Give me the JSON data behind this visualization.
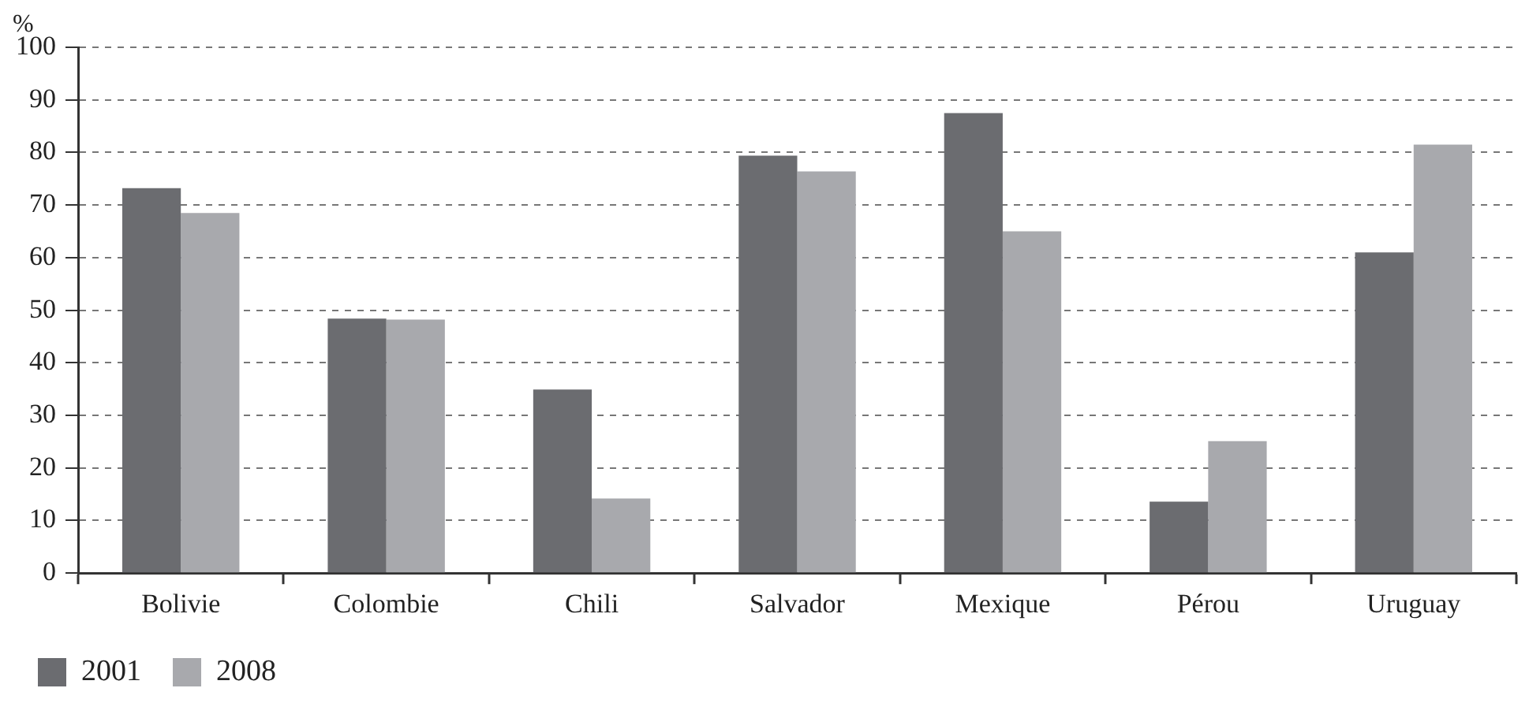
{
  "chart_data": {
    "type": "bar",
    "ylabel": "%",
    "categories": [
      "Bolivie",
      "Colombie",
      "Chili",
      "Salvador",
      "Mexique",
      "Pérou",
      "Uruguay"
    ],
    "series": [
      {
        "name": "2001",
        "color": "#6b6c70",
        "values": [
          73.2,
          48.4,
          34.9,
          79.4,
          87.5,
          13.6,
          61.0
        ]
      },
      {
        "name": "2008",
        "color": "#a8a9ad",
        "values": [
          68.5,
          48.2,
          14.2,
          76.4,
          65.0,
          25.1,
          81.5
        ]
      }
    ],
    "ylim": [
      0,
      100
    ],
    "yticks": [
      0,
      10,
      20,
      30,
      40,
      50,
      60,
      70,
      80,
      90,
      100
    ],
    "grid": "y",
    "legend": "bottom left"
  }
}
